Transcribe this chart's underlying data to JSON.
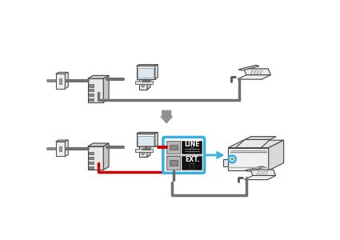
{
  "bg_color": "#ffffff",
  "red_line_color": "#cc0000",
  "gray_line_color": "#707070",
  "blue_box_color": "#3ab0e0",
  "dark_gray": "#505050",
  "light_gray": "#c8c8c8",
  "mid_gray": "#909090",
  "line_label1": "LINE",
  "line_label2": "EXT.",
  "arrow_gray": "#808080"
}
